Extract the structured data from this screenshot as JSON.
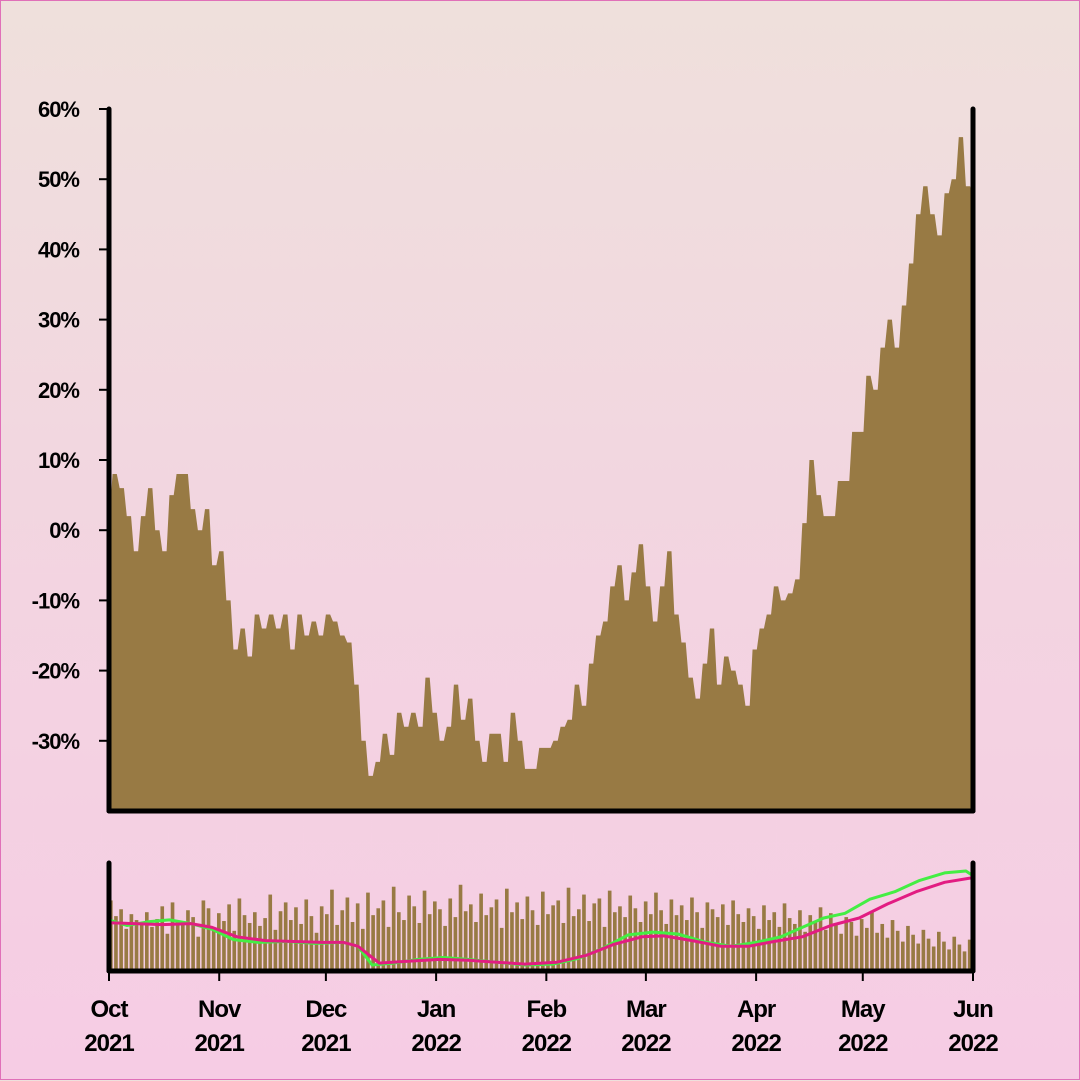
{
  "chart_data": [
    {
      "type": "area",
      "panel": "price",
      "color": "#987a44",
      "y_unit": "%",
      "ylim": [
        -40,
        60
      ],
      "y_ticks": [
        "60%",
        "50%",
        "40%",
        "30%",
        "20%",
        "10%",
        "0%",
        "-10%",
        "-20%",
        "-30%"
      ],
      "y_tick_values": [
        60,
        50,
        40,
        30,
        20,
        10,
        0,
        -10,
        -20,
        -30
      ],
      "xlim": [
        "2021-10-01",
        "2022-06-01"
      ],
      "x_ticks": [
        {
          "month": "Oct",
          "year": "2021",
          "date": "2021-10-01"
        },
        {
          "month": "Nov",
          "year": "2021",
          "date": "2021-11-01"
        },
        {
          "month": "Dec",
          "year": "2021",
          "date": "2021-12-01"
        },
        {
          "month": "Jan",
          "year": "2022",
          "date": "2022-01-01"
        },
        {
          "month": "Feb",
          "year": "2022",
          "date": "2022-02-01"
        },
        {
          "month": "Mar",
          "year": "2022",
          "date": "2022-03-01"
        },
        {
          "month": "Apr",
          "year": "2022",
          "date": "2022-04-01"
        },
        {
          "month": "May",
          "year": "2022",
          "date": "2022-05-01"
        },
        {
          "month": "Jun",
          "year": "2022",
          "date": "2022-06-01"
        }
      ],
      "points": [
        [
          "2021-10-01",
          5
        ],
        [
          "2021-10-02",
          8
        ],
        [
          "2021-10-04",
          6
        ],
        [
          "2021-10-06",
          2
        ],
        [
          "2021-10-08",
          -3
        ],
        [
          "2021-10-10",
          2
        ],
        [
          "2021-10-12",
          6
        ],
        [
          "2021-10-14",
          0
        ],
        [
          "2021-10-16",
          -3
        ],
        [
          "2021-10-18",
          5
        ],
        [
          "2021-10-20",
          8
        ],
        [
          "2021-10-22",
          8
        ],
        [
          "2021-10-24",
          3
        ],
        [
          "2021-10-26",
          0
        ],
        [
          "2021-10-28",
          3
        ],
        [
          "2021-10-30",
          -5
        ],
        [
          "2021-11-01",
          -3
        ],
        [
          "2021-11-03",
          -10
        ],
        [
          "2021-11-05",
          -17
        ],
        [
          "2021-11-07",
          -14
        ],
        [
          "2021-11-09",
          -18
        ],
        [
          "2021-11-11",
          -12
        ],
        [
          "2021-11-13",
          -14
        ],
        [
          "2021-11-15",
          -12
        ],
        [
          "2021-11-17",
          -14
        ],
        [
          "2021-11-19",
          -12
        ],
        [
          "2021-11-21",
          -17
        ],
        [
          "2021-11-23",
          -12
        ],
        [
          "2021-11-25",
          -15
        ],
        [
          "2021-11-27",
          -13
        ],
        [
          "2021-11-29",
          -15
        ],
        [
          "2021-12-01",
          -12
        ],
        [
          "2021-12-03",
          -13
        ],
        [
          "2021-12-05",
          -15
        ],
        [
          "2021-12-07",
          -16
        ],
        [
          "2021-12-09",
          -22
        ],
        [
          "2021-12-11",
          -30
        ],
        [
          "2021-12-13",
          -35
        ],
        [
          "2021-12-15",
          -33
        ],
        [
          "2021-12-17",
          -29
        ],
        [
          "2021-12-19",
          -32
        ],
        [
          "2021-12-21",
          -26
        ],
        [
          "2021-12-23",
          -28
        ],
        [
          "2021-12-25",
          -26
        ],
        [
          "2021-12-27",
          -28
        ],
        [
          "2021-12-29",
          -21
        ],
        [
          "2021-12-31",
          -26
        ],
        [
          "2022-01-02",
          -30
        ],
        [
          "2022-01-04",
          -28
        ],
        [
          "2022-01-06",
          -22
        ],
        [
          "2022-01-08",
          -27
        ],
        [
          "2022-01-10",
          -24
        ],
        [
          "2022-01-12",
          -30
        ],
        [
          "2022-01-14",
          -33
        ],
        [
          "2022-01-16",
          -29
        ],
        [
          "2022-01-18",
          -29
        ],
        [
          "2022-01-20",
          -33
        ],
        [
          "2022-01-22",
          -26
        ],
        [
          "2022-01-24",
          -30
        ],
        [
          "2022-01-26",
          -34
        ],
        [
          "2022-01-28",
          -34
        ],
        [
          "2022-01-30",
          -31
        ],
        [
          "2022-02-01",
          -31
        ],
        [
          "2022-02-03",
          -30
        ],
        [
          "2022-02-05",
          -28
        ],
        [
          "2022-02-07",
          -27
        ],
        [
          "2022-02-09",
          -22
        ],
        [
          "2022-02-11",
          -25
        ],
        [
          "2022-02-13",
          -19
        ],
        [
          "2022-02-15",
          -15
        ],
        [
          "2022-02-17",
          -13
        ],
        [
          "2022-02-19",
          -8
        ],
        [
          "2022-02-21",
          -5
        ],
        [
          "2022-02-23",
          -10
        ],
        [
          "2022-02-25",
          -6
        ],
        [
          "2022-02-27",
          -2
        ],
        [
          "2022-03-01",
          -8
        ],
        [
          "2022-03-03",
          -13
        ],
        [
          "2022-03-05",
          -8
        ],
        [
          "2022-03-07",
          -3
        ],
        [
          "2022-03-09",
          -12
        ],
        [
          "2022-03-11",
          -16
        ],
        [
          "2022-03-13",
          -21
        ],
        [
          "2022-03-15",
          -24
        ],
        [
          "2022-03-17",
          -19
        ],
        [
          "2022-03-19",
          -14
        ],
        [
          "2022-03-21",
          -22
        ],
        [
          "2022-03-23",
          -18
        ],
        [
          "2022-03-25",
          -20
        ],
        [
          "2022-03-27",
          -22
        ],
        [
          "2022-03-29",
          -25
        ],
        [
          "2022-03-31",
          -17
        ],
        [
          "2022-04-02",
          -14
        ],
        [
          "2022-04-04",
          -12
        ],
        [
          "2022-04-06",
          -8
        ],
        [
          "2022-04-08",
          -10
        ],
        [
          "2022-04-10",
          -9
        ],
        [
          "2022-04-12",
          -7
        ],
        [
          "2022-04-14",
          1
        ],
        [
          "2022-04-16",
          10
        ],
        [
          "2022-04-18",
          5
        ],
        [
          "2022-04-20",
          2
        ],
        [
          "2022-04-22",
          2
        ],
        [
          "2022-04-24",
          7
        ],
        [
          "2022-04-26",
          7
        ],
        [
          "2022-04-28",
          14
        ],
        [
          "2022-04-30",
          14
        ],
        [
          "2022-05-02",
          22
        ],
        [
          "2022-05-04",
          20
        ],
        [
          "2022-05-06",
          26
        ],
        [
          "2022-05-08",
          30
        ],
        [
          "2022-05-10",
          26
        ],
        [
          "2022-05-12",
          32
        ],
        [
          "2022-05-14",
          38
        ],
        [
          "2022-05-16",
          45
        ],
        [
          "2022-05-18",
          49
        ],
        [
          "2022-05-20",
          45
        ],
        [
          "2022-05-22",
          42
        ],
        [
          "2022-05-24",
          48
        ],
        [
          "2022-05-26",
          50
        ],
        [
          "2022-05-28",
          56
        ],
        [
          "2022-05-30",
          49
        ],
        [
          "2022-06-01",
          47
        ]
      ]
    },
    {
      "type": "bar+line",
      "panel": "volume",
      "bar_color": "#987a44",
      "bar_values": [
        0.72,
        0.56,
        0.63,
        0.43,
        0.58,
        0.52,
        0.47,
        0.6,
        0.45,
        0.53,
        0.66,
        0.38,
        0.7,
        0.5,
        0.48,
        0.62,
        0.55,
        0.35,
        0.72,
        0.64,
        0.44,
        0.59,
        0.51,
        0.68,
        0.41,
        0.74,
        0.57,
        0.49,
        0.6,
        0.46,
        0.54,
        0.78,
        0.42,
        0.61,
        0.7,
        0.52,
        0.65,
        0.48,
        0.73,
        0.56,
        0.39,
        0.66,
        0.58,
        0.83,
        0.47,
        0.62,
        0.75,
        0.5,
        0.69,
        0.43,
        0.8,
        0.57,
        0.64,
        0.72,
        0.45,
        0.86,
        0.6,
        0.52,
        0.77,
        0.66,
        0.49,
        0.82,
        0.58,
        0.71,
        0.63,
        0.46,
        0.74,
        0.55,
        0.88,
        0.61,
        0.68,
        0.5,
        0.79,
        0.57,
        0.65,
        0.73,
        0.44,
        0.84,
        0.6,
        0.7,
        0.53,
        0.76,
        0.62,
        0.47,
        0.81,
        0.58,
        0.67,
        0.72,
        0.49,
        0.85,
        0.56,
        0.63,
        0.78,
        0.51,
        0.69,
        0.74,
        0.45,
        0.82,
        0.6,
        0.66,
        0.55,
        0.77,
        0.64,
        0.5,
        0.71,
        0.58,
        0.8,
        0.62,
        0.48,
        0.73,
        0.57,
        0.67,
        0.52,
        0.75,
        0.6,
        0.44,
        0.7,
        0.63,
        0.55,
        0.68,
        0.47,
        0.72,
        0.58,
        0.5,
        0.64,
        0.56,
        0.43,
        0.67,
        0.52,
        0.6,
        0.45,
        0.69,
        0.54,
        0.48,
        0.62,
        0.4,
        0.57,
        0.51,
        0.65,
        0.42,
        0.59,
        0.47,
        0.38,
        0.55,
        0.5,
        0.36,
        0.53,
        0.44,
        0.6,
        0.39,
        0.48,
        0.34,
        0.52,
        0.41,
        0.3,
        0.46,
        0.37,
        0.28,
        0.42,
        0.33,
        0.25,
        0.4,
        0.3,
        0.22,
        0.35,
        0.27,
        0.2,
        0.32
      ],
      "lines": [
        {
          "color": "#44ee44",
          "points": [
            [
              "2021-10-01",
              0.48
            ],
            [
              "2021-10-06",
              0.42
            ],
            [
              "2021-10-12",
              0.46
            ],
            [
              "2021-10-18",
              0.48
            ],
            [
              "2021-10-24",
              0.44
            ],
            [
              "2021-10-30",
              0.38
            ],
            [
              "2021-11-05",
              0.27
            ],
            [
              "2021-11-12",
              0.24
            ],
            [
              "2021-11-20",
              0.25
            ],
            [
              "2021-11-28",
              0.23
            ],
            [
              "2021-12-06",
              0.24
            ],
            [
              "2021-12-10",
              0.2
            ],
            [
              "2021-12-14",
              0.0
            ],
            [
              "2021-12-20",
              0.02
            ],
            [
              "2021-12-27",
              0.06
            ],
            [
              "2022-01-03",
              0.08
            ],
            [
              "2022-01-10",
              0.06
            ],
            [
              "2022-01-18",
              0.03
            ],
            [
              "2022-01-26",
              0.0
            ],
            [
              "2022-02-03",
              0.01
            ],
            [
              "2022-02-10",
              0.07
            ],
            [
              "2022-02-17",
              0.18
            ],
            [
              "2022-02-24",
              0.32
            ],
            [
              "2022-03-03",
              0.35
            ],
            [
              "2022-03-10",
              0.33
            ],
            [
              "2022-03-18",
              0.24
            ],
            [
              "2022-03-25",
              0.2
            ],
            [
              "2022-04-01",
              0.24
            ],
            [
              "2022-04-08",
              0.3
            ],
            [
              "2022-04-14",
              0.4
            ],
            [
              "2022-04-20",
              0.5
            ],
            [
              "2022-04-26",
              0.55
            ],
            [
              "2022-05-03",
              0.7
            ],
            [
              "2022-05-10",
              0.78
            ],
            [
              "2022-05-17",
              0.9
            ],
            [
              "2022-05-24",
              0.98
            ],
            [
              "2022-05-30",
              1.0
            ],
            [
              "2022-06-01",
              0.95
            ]
          ]
        },
        {
          "color": "#e21c82",
          "points": [
            [
              "2021-10-01",
              0.45
            ],
            [
              "2021-10-08",
              0.44
            ],
            [
              "2021-10-16",
              0.43
            ],
            [
              "2021-10-24",
              0.44
            ],
            [
              "2021-10-30",
              0.4
            ],
            [
              "2021-11-06",
              0.3
            ],
            [
              "2021-11-14",
              0.26
            ],
            [
              "2021-11-22",
              0.25
            ],
            [
              "2021-11-30",
              0.24
            ],
            [
              "2021-12-06",
              0.24
            ],
            [
              "2021-12-10",
              0.2
            ],
            [
              "2021-12-16",
              0.02
            ],
            [
              "2021-12-24",
              0.04
            ],
            [
              "2022-01-02",
              0.06
            ],
            [
              "2022-01-10",
              0.05
            ],
            [
              "2022-01-18",
              0.03
            ],
            [
              "2022-01-26",
              0.01
            ],
            [
              "2022-02-04",
              0.03
            ],
            [
              "2022-02-12",
              0.1
            ],
            [
              "2022-02-20",
              0.22
            ],
            [
              "2022-02-28",
              0.3
            ],
            [
              "2022-03-06",
              0.31
            ],
            [
              "2022-03-14",
              0.26
            ],
            [
              "2022-03-22",
              0.2
            ],
            [
              "2022-03-30",
              0.2
            ],
            [
              "2022-04-06",
              0.25
            ],
            [
              "2022-04-14",
              0.3
            ],
            [
              "2022-04-22",
              0.42
            ],
            [
              "2022-04-30",
              0.5
            ],
            [
              "2022-05-08",
              0.65
            ],
            [
              "2022-05-16",
              0.78
            ],
            [
              "2022-05-24",
              0.88
            ],
            [
              "2022-06-01",
              0.93
            ]
          ]
        }
      ]
    }
  ]
}
